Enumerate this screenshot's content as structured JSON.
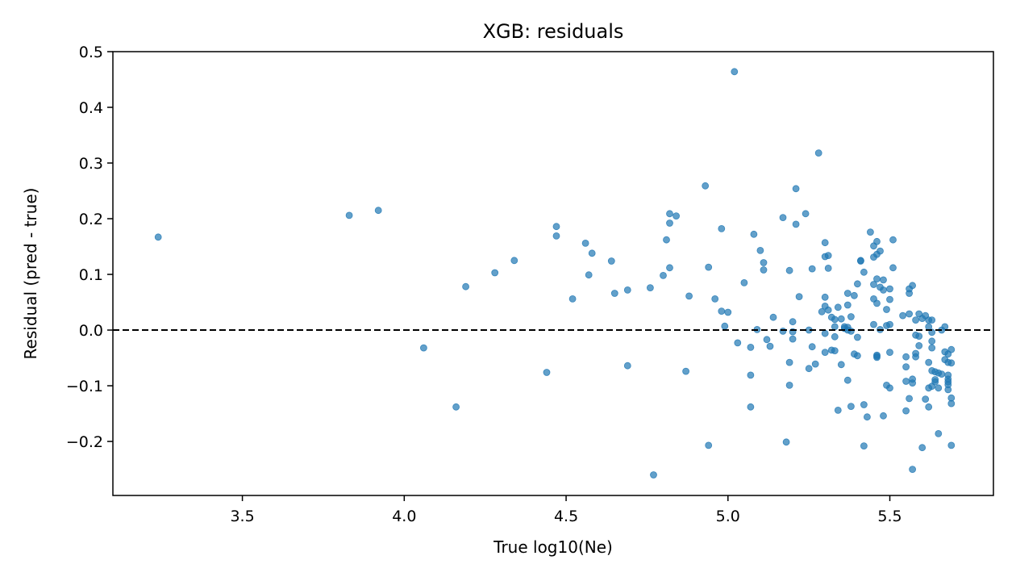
{
  "chart_data": {
    "type": "scatter",
    "title": "XGB: residuals",
    "xlabel": "True log10(Ne)",
    "ylabel": "Residual (pred - true)",
    "xlim": [
      3.1,
      5.82
    ],
    "ylim": [
      -0.297,
      0.5
    ],
    "xticks": [
      3.5,
      4.0,
      4.5,
      5.0,
      5.5
    ],
    "xtick_labels": [
      "3.5",
      "4.0",
      "4.5",
      "5.0",
      "5.5"
    ],
    "yticks": [
      -0.2,
      -0.1,
      0.0,
      0.1,
      0.2,
      0.3,
      0.4,
      0.5
    ],
    "ytick_labels": [
      "−0.2",
      "−0.1",
      "0.0",
      "0.1",
      "0.2",
      "0.3",
      "0.4",
      "0.5"
    ],
    "grid": false,
    "reference_line_y": 0.0,
    "point_color": "#1f77b4",
    "points": [
      [
        3.24,
        0.167
      ],
      [
        3.83,
        0.206
      ],
      [
        3.92,
        0.215
      ],
      [
        4.06,
        -0.032
      ],
      [
        4.16,
        -0.138
      ],
      [
        4.19,
        0.078
      ],
      [
        4.28,
        0.103
      ],
      [
        4.34,
        0.125
      ],
      [
        4.44,
        -0.076
      ],
      [
        4.47,
        0.186
      ],
      [
        4.47,
        0.169
      ],
      [
        4.52,
        0.056
      ],
      [
        4.56,
        0.156
      ],
      [
        4.58,
        0.138
      ],
      [
        4.57,
        0.099
      ],
      [
        4.64,
        0.124
      ],
      [
        4.65,
        0.066
      ],
      [
        4.69,
        -0.064
      ],
      [
        4.69,
        0.072
      ],
      [
        4.76,
        0.076
      ],
      [
        4.77,
        -0.26
      ],
      [
        4.8,
        0.098
      ],
      [
        4.81,
        0.162
      ],
      [
        4.82,
        0.209
      ],
      [
        4.82,
        0.192
      ],
      [
        4.82,
        0.112
      ],
      [
        4.84,
        0.205
      ],
      [
        4.87,
        -0.074
      ],
      [
        4.88,
        0.061
      ],
      [
        4.93,
        0.259
      ],
      [
        4.94,
        -0.207
      ],
      [
        4.94,
        0.113
      ],
      [
        4.96,
        0.056
      ],
      [
        4.98,
        0.182
      ],
      [
        4.98,
        0.034
      ],
      [
        4.99,
        0.007
      ],
      [
        5.0,
        0.032
      ],
      [
        5.02,
        0.464
      ],
      [
        5.03,
        -0.023
      ],
      [
        5.05,
        0.085
      ],
      [
        5.07,
        -0.081
      ],
      [
        5.07,
        -0.031
      ],
      [
        5.07,
        -0.138
      ],
      [
        5.08,
        0.172
      ],
      [
        5.09,
        0.001
      ],
      [
        5.1,
        0.143
      ],
      [
        5.11,
        0.121
      ],
      [
        5.11,
        0.108
      ],
      [
        5.12,
        -0.017
      ],
      [
        5.13,
        -0.029
      ],
      [
        5.14,
        0.023
      ],
      [
        5.17,
        0.202
      ],
      [
        5.17,
        -0.002
      ],
      [
        5.18,
        -0.201
      ],
      [
        5.19,
        0.107
      ],
      [
        5.19,
        -0.058
      ],
      [
        5.19,
        -0.099
      ],
      [
        5.2,
        0.015
      ],
      [
        5.2,
        -0.003
      ],
      [
        5.2,
        -0.016
      ],
      [
        5.21,
        0.19
      ],
      [
        5.21,
        0.254
      ],
      [
        5.22,
        0.06
      ],
      [
        5.24,
        0.209
      ],
      [
        5.25,
        0.0
      ],
      [
        5.25,
        -0.069
      ],
      [
        5.26,
        0.11
      ],
      [
        5.26,
        -0.03
      ],
      [
        5.27,
        -0.061
      ],
      [
        5.28,
        0.318
      ],
      [
        5.29,
        0.033
      ],
      [
        5.3,
        0.059
      ],
      [
        5.3,
        0.043
      ],
      [
        5.3,
        0.132
      ],
      [
        5.3,
        0.157
      ],
      [
        5.3,
        -0.006
      ],
      [
        5.3,
        -0.04
      ],
      [
        5.31,
        0.111
      ],
      [
        5.31,
        0.036
      ],
      [
        5.31,
        0.134
      ],
      [
        5.32,
        0.023
      ],
      [
        5.32,
        -0.036
      ],
      [
        5.33,
        0.019
      ],
      [
        5.33,
        -0.012
      ],
      [
        5.33,
        0.006
      ],
      [
        5.33,
        -0.037
      ],
      [
        5.34,
        -0.144
      ],
      [
        5.34,
        0.041
      ],
      [
        5.35,
        -0.062
      ],
      [
        5.35,
        0.02
      ],
      [
        5.36,
        0.003
      ],
      [
        5.36,
        0.006
      ],
      [
        5.37,
        0.066
      ],
      [
        5.37,
        0.045
      ],
      [
        5.37,
        0.005
      ],
      [
        5.37,
        0.0
      ],
      [
        5.37,
        -0.09
      ],
      [
        5.38,
        0.024
      ],
      [
        5.38,
        -0.137
      ],
      [
        5.38,
        -0.002
      ],
      [
        5.39,
        -0.043
      ],
      [
        5.39,
        0.062
      ],
      [
        5.4,
        -0.046
      ],
      [
        5.4,
        -0.013
      ],
      [
        5.4,
        0.083
      ],
      [
        5.41,
        0.124
      ],
      [
        5.41,
        0.125
      ],
      [
        5.42,
        -0.134
      ],
      [
        5.42,
        0.104
      ],
      [
        5.42,
        -0.208
      ],
      [
        5.43,
        -0.156
      ],
      [
        5.44,
        0.176
      ],
      [
        5.45,
        0.01
      ],
      [
        5.45,
        0.151
      ],
      [
        5.45,
        0.131
      ],
      [
        5.45,
        0.056
      ],
      [
        5.45,
        0.082
      ],
      [
        5.46,
        0.159
      ],
      [
        5.46,
        0.136
      ],
      [
        5.46,
        -0.045
      ],
      [
        5.46,
        -0.047
      ],
      [
        5.46,
        -0.049
      ],
      [
        5.46,
        0.092
      ],
      [
        5.46,
        0.048
      ],
      [
        5.47,
        0.077
      ],
      [
        5.47,
        0.001
      ],
      [
        5.47,
        0.142
      ],
      [
        5.48,
        0.09
      ],
      [
        5.48,
        0.072
      ],
      [
        5.48,
        -0.154
      ],
      [
        5.49,
        -0.099
      ],
      [
        5.49,
        0.037
      ],
      [
        5.49,
        0.008
      ],
      [
        5.5,
        0.074
      ],
      [
        5.5,
        -0.04
      ],
      [
        5.5,
        0.055
      ],
      [
        5.5,
        0.01
      ],
      [
        5.5,
        -0.104
      ],
      [
        5.51,
        0.162
      ],
      [
        5.51,
        0.112
      ],
      [
        5.54,
        0.026
      ],
      [
        5.55,
        -0.145
      ],
      [
        5.55,
        -0.048
      ],
      [
        5.55,
        -0.066
      ],
      [
        5.55,
        -0.092
      ],
      [
        5.56,
        0.066
      ],
      [
        5.56,
        0.074
      ],
      [
        5.56,
        -0.123
      ],
      [
        5.56,
        0.029
      ],
      [
        5.57,
        0.08
      ],
      [
        5.57,
        -0.088
      ],
      [
        5.57,
        -0.25
      ],
      [
        5.57,
        -0.095
      ],
      [
        5.58,
        -0.042
      ],
      [
        5.58,
        -0.009
      ],
      [
        5.58,
        -0.048
      ],
      [
        5.58,
        0.018
      ],
      [
        5.59,
        -0.028
      ],
      [
        5.59,
        0.029
      ],
      [
        5.59,
        -0.011
      ],
      [
        5.6,
        -0.211
      ],
      [
        5.6,
        0.021
      ],
      [
        5.61,
        -0.124
      ],
      [
        5.61,
        0.026
      ],
      [
        5.62,
        -0.138
      ],
      [
        5.62,
        0.006
      ],
      [
        5.62,
        0.018
      ],
      [
        5.62,
        -0.058
      ],
      [
        5.62,
        -0.104
      ],
      [
        5.63,
        -0.101
      ],
      [
        5.63,
        -0.004
      ],
      [
        5.63,
        0.018
      ],
      [
        5.63,
        -0.073
      ],
      [
        5.63,
        -0.02
      ],
      [
        5.63,
        -0.032
      ],
      [
        5.64,
        -0.093
      ],
      [
        5.64,
        -0.075
      ],
      [
        5.64,
        -0.089
      ],
      [
        5.65,
        -0.104
      ],
      [
        5.65,
        -0.077
      ],
      [
        5.65,
        -0.186
      ],
      [
        5.66,
        0.0
      ],
      [
        5.66,
        -0.079
      ],
      [
        5.67,
        -0.053
      ],
      [
        5.67,
        0.006
      ],
      [
        5.67,
        -0.039
      ],
      [
        5.68,
        -0.043
      ],
      [
        5.68,
        -0.058
      ],
      [
        5.68,
        -0.088
      ],
      [
        5.68,
        -0.093
      ],
      [
        5.68,
        -0.098
      ],
      [
        5.68,
        -0.081
      ],
      [
        5.68,
        -0.107
      ],
      [
        5.69,
        -0.059
      ],
      [
        5.69,
        -0.035
      ],
      [
        5.69,
        -0.132
      ],
      [
        5.69,
        -0.122
      ],
      [
        5.69,
        -0.207
      ]
    ]
  }
}
